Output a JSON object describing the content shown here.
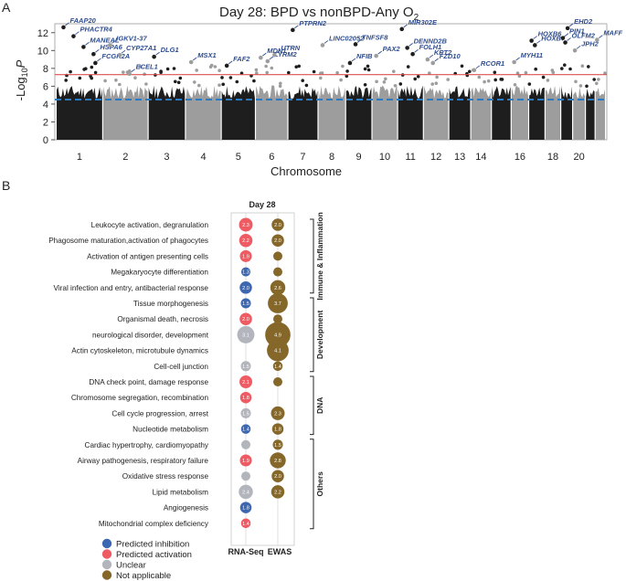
{
  "panel_a": {
    "label": "A",
    "title_main": "Day 28: BPD vs nonBPD-Any O",
    "title_sub": "2",
    "ylabel_pre": "-Log",
    "ylabel_sub": "10",
    "ylabel_post": "P",
    "xlabel": "Chromosome"
  },
  "panel_b": {
    "label": "B",
    "col_header": "Day 28",
    "col_labels": [
      "RNA-Seq",
      "EWAS"
    ],
    "legend": [
      {
        "label": "Predicted inhibition",
        "color": "#3d67b1"
      },
      {
        "label": "Predicted activation",
        "color": "#ee5b62"
      },
      {
        "label": "Unclear",
        "color": "#b3b5bd"
      },
      {
        "label": "Not applicable",
        "color": "#85672a"
      }
    ]
  },
  "chart_data": [
    {
      "type": "scatter",
      "name": "manhattan",
      "xlabel": "Chromosome",
      "ylabel": "-Log10P",
      "ylim": [
        0,
        13
      ],
      "yticks": [
        0,
        2,
        4,
        6,
        8,
        10,
        12
      ],
      "grid": false,
      "thresholds": [
        {
          "value": 7.3,
          "style": "solid",
          "color": "#d9534f"
        },
        {
          "value": 4.5,
          "style": "dashed",
          "color": "#2b7bc4"
        }
      ],
      "colors": {
        "odd": "#1e1e1e",
        "even": "#9d9d9d"
      },
      "chromosomes": [
        {
          "label": "1",
          "tick": true
        },
        {
          "label": "2",
          "tick": true
        },
        {
          "label": "3",
          "tick": true
        },
        {
          "label": "4",
          "tick": true
        },
        {
          "label": "5",
          "tick": true
        },
        {
          "label": "6",
          "tick": true
        },
        {
          "label": "7",
          "tick": true
        },
        {
          "label": "8",
          "tick": true
        },
        {
          "label": "9",
          "tick": true
        },
        {
          "label": "10",
          "tick": true
        },
        {
          "label": "11",
          "tick": true
        },
        {
          "label": "12",
          "tick": true
        },
        {
          "label": "13",
          "tick": true
        },
        {
          "label": "14",
          "tick": true
        },
        {
          "label": "15",
          "tick": false
        },
        {
          "label": "16",
          "tick": true
        },
        {
          "label": "17",
          "tick": false
        },
        {
          "label": "18",
          "tick": true
        },
        {
          "label": "19",
          "tick": false
        },
        {
          "label": "20",
          "tick": true
        },
        {
          "label": "21",
          "tick": false
        },
        {
          "label": "22",
          "tick": false
        }
      ],
      "labeled_points": [
        {
          "gene": "FAAP20",
          "chr": "1",
          "y": 12.6
        },
        {
          "gene": "PHACTR4",
          "chr": "1",
          "y": 11.6
        },
        {
          "gene": "MANEAL",
          "chr": "1",
          "y": 10.4
        },
        {
          "gene": "HSPA6",
          "chr": "1",
          "y": 9.6
        },
        {
          "gene": "FCGR2A",
          "chr": "1",
          "y": 8.6
        },
        {
          "gene": "IGKV1-37",
          "chr": "2",
          "y": 10.6
        },
        {
          "gene": "CYP27A1",
          "chr": "2",
          "y": 9.5
        },
        {
          "gene": "ECEL1",
          "chr": "2",
          "y": 7.4
        },
        {
          "gene": "DLG1",
          "chr": "3",
          "y": 9.3
        },
        {
          "gene": "MSX1",
          "chr": "4",
          "y": 8.7
        },
        {
          "gene": "FAF2",
          "chr": "5",
          "y": 8.3
        },
        {
          "gene": "MDN1",
          "chr": "6",
          "y": 9.2
        },
        {
          "gene": "LYRM2",
          "chr": "6",
          "y": 8.8
        },
        {
          "gene": "UTRN",
          "chr": "6",
          "y": 9.5
        },
        {
          "gene": "PTPRN2",
          "chr": "7",
          "y": 12.3
        },
        {
          "gene": "LINC02052",
          "chr": "8",
          "y": 10.6
        },
        {
          "gene": "NFIB",
          "chr": "9",
          "y": 8.6
        },
        {
          "gene": "TNFSF8",
          "chr": "9",
          "y": 10.7
        },
        {
          "gene": "PAX2",
          "chr": "10",
          "y": 9.4
        },
        {
          "gene": "MIR302E",
          "chr": "11",
          "y": 12.4
        },
        {
          "gene": "DENND2B",
          "chr": "11",
          "y": 10.3
        },
        {
          "gene": "FOLH1",
          "chr": "11",
          "y": 9.6
        },
        {
          "gene": "KRT2",
          "chr": "12",
          "y": 9.0
        },
        {
          "gene": "FZD10",
          "chr": "12",
          "y": 8.6
        },
        {
          "gene": "RCOR1",
          "chr": "14",
          "y": 7.8
        },
        {
          "gene": "MYH11",
          "chr": "16",
          "y": 8.7
        },
        {
          "gene": "HOXB6",
          "chr": "17",
          "y": 11.1
        },
        {
          "gene": "HOXB7",
          "chr": "17",
          "y": 10.6
        },
        {
          "gene": "PIN1",
          "chr": "19",
          "y": 11.4
        },
        {
          "gene": "OLFM2",
          "chr": "19",
          "y": 10.9
        },
        {
          "gene": "EHD2",
          "chr": "19",
          "y": 12.5
        },
        {
          "gene": "JPH2",
          "chr": "20",
          "y": 10.0
        },
        {
          "gene": "MAFF",
          "chr": "22",
          "y": 11.2
        }
      ]
    },
    {
      "type": "bubble",
      "name": "pathway-dotplot",
      "columns": [
        "RNA-Seq",
        "EWAS"
      ],
      "categories": [
        "Predicted inhibition",
        "Predicted activation",
        "Unclear",
        "Not applicable"
      ],
      "groups": [
        {
          "name": "Immune & Inflammation",
          "rows": [
            {
              "label": "Leukocyte activation, degranulation",
              "rna": {
                "cat": "Predicted activation",
                "z": 2.3
              },
              "ewas": {
                "cat": "Not applicable",
                "z": 2.0
              }
            },
            {
              "label": "Phagosome maturation,activation of phagocytes",
              "rna": {
                "cat": "Predicted activation",
                "z": 2.2
              },
              "ewas": {
                "cat": "Not applicable",
                "z": 2.0
              }
            },
            {
              "label": "Activation of antigen presenting cells",
              "rna": {
                "cat": "Predicted activation",
                "z": 1.9
              },
              "ewas": {
                "cat": "Not applicable",
                "z": null
              }
            },
            {
              "label": "Megakaryocyte differentiation",
              "rna": {
                "cat": "Predicted inhibition",
                "z": 1.3
              },
              "ewas": {
                "cat": "Not applicable",
                "z": null
              }
            },
            {
              "label": "Viral infection and entry, antibacterial response",
              "rna": {
                "cat": "Predicted inhibition",
                "z": 2.0
              },
              "ewas": {
                "cat": "Not applicable",
                "z": 2.6
              }
            }
          ]
        },
        {
          "name": "Development",
          "rows": [
            {
              "label": "Tissue morphogenesis",
              "rna": {
                "cat": "Predicted inhibition",
                "z": 1.5
              },
              "ewas": {
                "cat": "Not applicable",
                "z": 3.7
              }
            },
            {
              "label": "Organismal death, necrosis",
              "rna": {
                "cat": "Predicted activation",
                "z": 2.0
              },
              "ewas": {
                "cat": "Not applicable",
                "z": null
              }
            },
            {
              "label": "neurological disorder, development",
              "rna": {
                "cat": "Unclear",
                "z": 3.1
              },
              "ewas": {
                "cat": "Not applicable",
                "z": 4.9
              }
            },
            {
              "label": "Actin cytoskeleton, microtubule dynamics",
              "rna": null,
              "ewas": {
                "cat": "Not applicable",
                "z": 4.1
              }
            },
            {
              "label": "Cell-cell junction",
              "rna": {
                "cat": "Unclear",
                "z": 1.5
              },
              "ewas": {
                "cat": "Not applicable",
                "z": 1.4
              }
            }
          ]
        },
        {
          "name": "DNA",
          "rows": [
            {
              "label": "DNA check point, damage response",
              "rna": {
                "cat": "Predicted activation",
                "z": 2.1
              },
              "ewas": {
                "cat": "Not applicable",
                "z": null
              }
            },
            {
              "label": "Chromosome segregation, recombination",
              "rna": {
                "cat": "Predicted activation",
                "z": 1.8
              },
              "ewas": null
            },
            {
              "label": "Cell cycle progression, arrest",
              "rna": {
                "cat": "Unclear",
                "z": 1.5
              },
              "ewas": {
                "cat": "Not applicable",
                "z": 2.3
              }
            },
            {
              "label": "Nucleotide metabolism",
              "rna": {
                "cat": "Predicted inhibition",
                "z": 1.4
              },
              "ewas": {
                "cat": "Not applicable",
                "z": 1.8
              }
            }
          ]
        },
        {
          "name": "Others",
          "rows": [
            {
              "label": "Cardiac hypertrophy, cardiomyopathy",
              "rna": {
                "cat": "Unclear",
                "z": null
              },
              "ewas": {
                "cat": "Not applicable",
                "z": 1.5
              }
            },
            {
              "label": "Airway pathogenesis, respiratory failure",
              "rna": {
                "cat": "Predicted activation",
                "z": 1.9
              },
              "ewas": {
                "cat": "Not applicable",
                "z": 2.8
              }
            },
            {
              "label": "Oxidative stress response",
              "rna": {
                "cat": "Unclear",
                "z": null
              },
              "ewas": {
                "cat": "Not applicable",
                "z": 2.0
              }
            },
            {
              "label": "Lipid metabolism",
              "rna": {
                "cat": "Unclear",
                "z": 2.4
              },
              "ewas": {
                "cat": "Not applicable",
                "z": 2.2
              }
            },
            {
              "label": "Angiogenesis",
              "rna": {
                "cat": "Predicted inhibition",
                "z": 1.8
              },
              "ewas": null
            },
            {
              "label": "Mitochondrial complex deficiency",
              "rna": {
                "cat": "Predicted activation",
                "z": 1.4
              },
              "ewas": null
            }
          ]
        }
      ]
    }
  ]
}
